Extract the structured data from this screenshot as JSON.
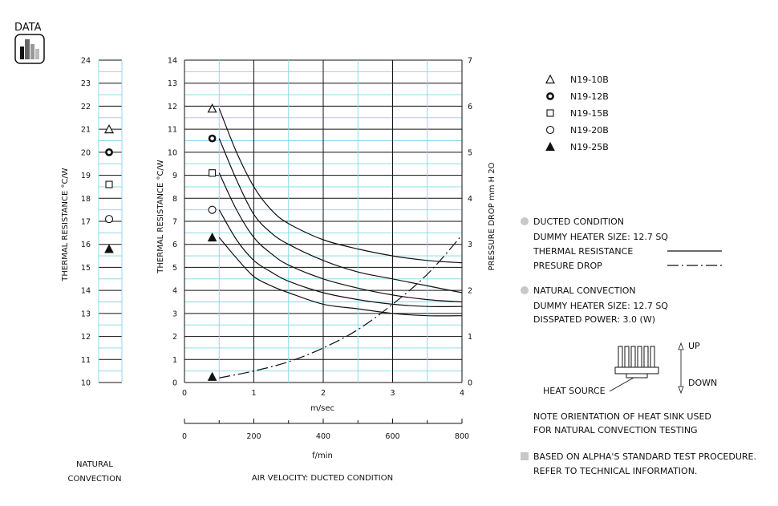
{
  "header": {
    "label": "DATA",
    "icon": "bar-chart-icon"
  },
  "chart_data": [
    {
      "type": "scatter",
      "id": "natural-convection",
      "ylabel": "THERMAL RESISTANCE  °C/W",
      "xlabel": "NATURAL CONVECTION",
      "ylim": [
        10,
        24
      ],
      "y_ticks": [
        "10",
        "11",
        "12",
        "13",
        "14",
        "15",
        "16",
        "17",
        "18",
        "19",
        "20",
        "21",
        "22",
        "23",
        "24"
      ],
      "points": [
        {
          "series": "N19-10B",
          "y": 21.0
        },
        {
          "series": "N19-12B",
          "y": 20.0
        },
        {
          "series": "N19-15B",
          "y": 18.6
        },
        {
          "series": "N19-20B",
          "y": 17.1
        },
        {
          "series": "N19-25B",
          "y": 15.8
        }
      ]
    },
    {
      "type": "line",
      "id": "ducted-condition",
      "title": "AIR VELOCITY:  DUCTED CONDITION",
      "ylabel": "THERMAL RESISTANCE  °C/W",
      "y2label": "PRESSURE  DROP    mm H 2O",
      "xlabel": "m/sec",
      "x2label": "f/min",
      "xlim": [
        0,
        4
      ],
      "ylim": [
        0,
        14
      ],
      "y2lim": [
        0,
        7
      ],
      "x_ticks": [
        "0",
        "1",
        "2",
        "3",
        "4"
      ],
      "x2_ticks": [
        "0",
        "200",
        "400",
        "600",
        "800"
      ],
      "y_ticks": [
        "0",
        "1",
        "2",
        "3",
        "4",
        "5",
        "6",
        "7",
        "8",
        "9",
        "10",
        "11",
        "12",
        "13",
        "14"
      ],
      "y2_ticks": [
        "0",
        "1",
        "2",
        "3",
        "4",
        "5",
        "6",
        "7"
      ],
      "grid": true,
      "series": [
        {
          "name": "N19-10B",
          "x": [
            0.5,
            0.75,
            1.0,
            1.25,
            1.5,
            2.0,
            2.5,
            3.0,
            3.5,
            4.0
          ],
          "y": [
            11.9,
            10.0,
            8.5,
            7.5,
            6.9,
            6.2,
            5.8,
            5.5,
            5.3,
            5.2
          ]
        },
        {
          "name": "N19-12B",
          "x": [
            0.5,
            0.75,
            1.0,
            1.25,
            1.5,
            2.0,
            2.5,
            3.0,
            3.5,
            4.0
          ],
          "y": [
            10.6,
            8.8,
            7.3,
            6.5,
            6.0,
            5.3,
            4.8,
            4.5,
            4.2,
            3.9
          ]
        },
        {
          "name": "N19-15B",
          "x": [
            0.5,
            0.75,
            1.0,
            1.25,
            1.5,
            2.0,
            2.5,
            3.0,
            3.5,
            4.0
          ],
          "y": [
            9.1,
            7.5,
            6.3,
            5.6,
            5.1,
            4.5,
            4.1,
            3.8,
            3.6,
            3.5
          ]
        },
        {
          "name": "N19-20B",
          "x": [
            0.5,
            0.75,
            1.0,
            1.25,
            1.5,
            2.0,
            2.5,
            3.0,
            3.5,
            4.0
          ],
          "y": [
            7.5,
            6.2,
            5.3,
            4.8,
            4.4,
            3.9,
            3.6,
            3.4,
            3.3,
            3.3
          ]
        },
        {
          "name": "N19-25B",
          "x": [
            0.5,
            0.75,
            1.0,
            1.25,
            1.5,
            2.0,
            2.5,
            3.0,
            3.5,
            4.0
          ],
          "y": [
            6.3,
            5.4,
            4.6,
            4.2,
            3.9,
            3.4,
            3.2,
            3.0,
            2.9,
            2.9
          ]
        },
        {
          "name": "PRESURE DROP",
          "axis": "y2",
          "x": [
            0.5,
            1.0,
            1.5,
            2.0,
            2.5,
            3.0,
            3.5,
            4.0
          ],
          "y": [
            0.1,
            0.25,
            0.45,
            0.75,
            1.15,
            1.7,
            2.35,
            3.2
          ]
        }
      ],
      "markers": [
        {
          "series": "N19-10B",
          "x": 0.4,
          "y": 11.9
        },
        {
          "series": "N19-12B",
          "x": 0.4,
          "y": 10.6
        },
        {
          "series": "N19-15B",
          "x": 0.4,
          "y": 9.1
        },
        {
          "series": "N19-20B",
          "x": 0.4,
          "y": 7.5
        },
        {
          "series": "N19-25B",
          "x": 0.4,
          "y": 6.3
        },
        {
          "series": "N19-25B",
          "x": 0.4,
          "y": 0.25
        }
      ]
    }
  ],
  "legend": {
    "items": [
      {
        "label": "N19-10B",
        "symbol": "triangle-open"
      },
      {
        "label": "N19-12B",
        "symbol": "circle-bold"
      },
      {
        "label": "N19-15B",
        "symbol": "square-open"
      },
      {
        "label": "N19-20B",
        "symbol": "circle-open"
      },
      {
        "label": "N19-25B",
        "symbol": "triangle-filled"
      }
    ]
  },
  "conditions": {
    "ducted": {
      "title": "DUCTED CONDITION",
      "heater": "DUMMY HEATER SIZE: 12.7 SQ",
      "thermal": "THERMAL RESISTANCE",
      "pressure": "PRESURE DROP"
    },
    "natural": {
      "title": "NATURAL CONVECTION",
      "heater": "DUMMY HEATER SIZE: 12.7 SQ",
      "power": "DISSPATED POWER: 3.0 (W)"
    }
  },
  "diagram": {
    "up": "UP",
    "down": "DOWN",
    "heat_source": "HEAT SOURCE",
    "note_line1": "NOTE ORIENTATION OF HEAT SINK USED",
    "note_line2": "FOR NATURAL CONVECTION TESTING"
  },
  "footer": {
    "line1": "BASED ON ALPHA'S STANDARD TEST PROCEDURE.",
    "line2": "REFER TO TECHNICAL INFORMATION."
  }
}
